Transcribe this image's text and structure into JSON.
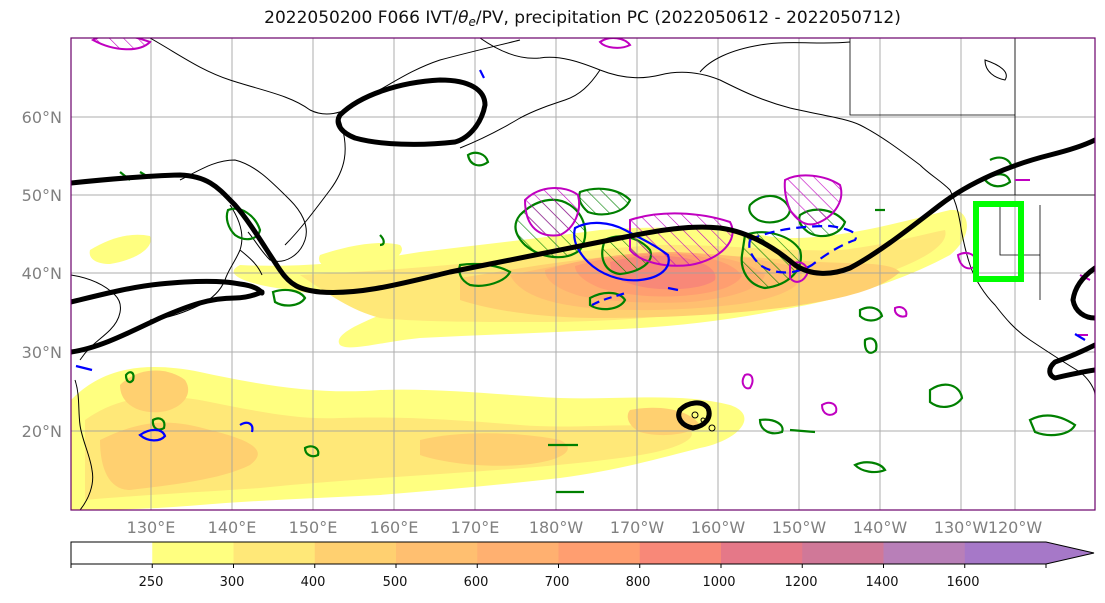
{
  "title": {
    "prefix": "2022050200 F066 IVT/",
    "theta": "θ",
    "theta_sub": "e",
    "suffix": "/PV, precipitation PC (2022050612 - 2022050712)"
  },
  "map": {
    "lat_labels": [
      "60°N",
      "50°N",
      "40°N",
      "30°N",
      "20°N"
    ],
    "lon_labels": [
      "130°E",
      "140°E",
      "150°E",
      "160°E",
      "170°E",
      "180°W",
      "170°W",
      "160°W",
      "150°W",
      "140°W",
      "130°W",
      "120°W"
    ],
    "highlight_box_color": "#00ff00",
    "contour_colors": {
      "theta_e": "#000000",
      "precip_positive": "#008000",
      "pv": "#c000c0",
      "precip_negative": "#0000ff"
    }
  },
  "colorbar": {
    "ticks": [
      "250",
      "300",
      "400",
      "500",
      "600",
      "700",
      "800",
      "1000",
      "1200",
      "1400",
      "1600"
    ],
    "colors": [
      "#ffffff",
      "#ffff80",
      "#ffe878",
      "#ffd070",
      "#ffbf70",
      "#ffb070",
      "#ff9e70",
      "#f88878",
      "#e57888",
      "#d07898",
      "#b87fb8",
      "#a678c8"
    ]
  }
}
